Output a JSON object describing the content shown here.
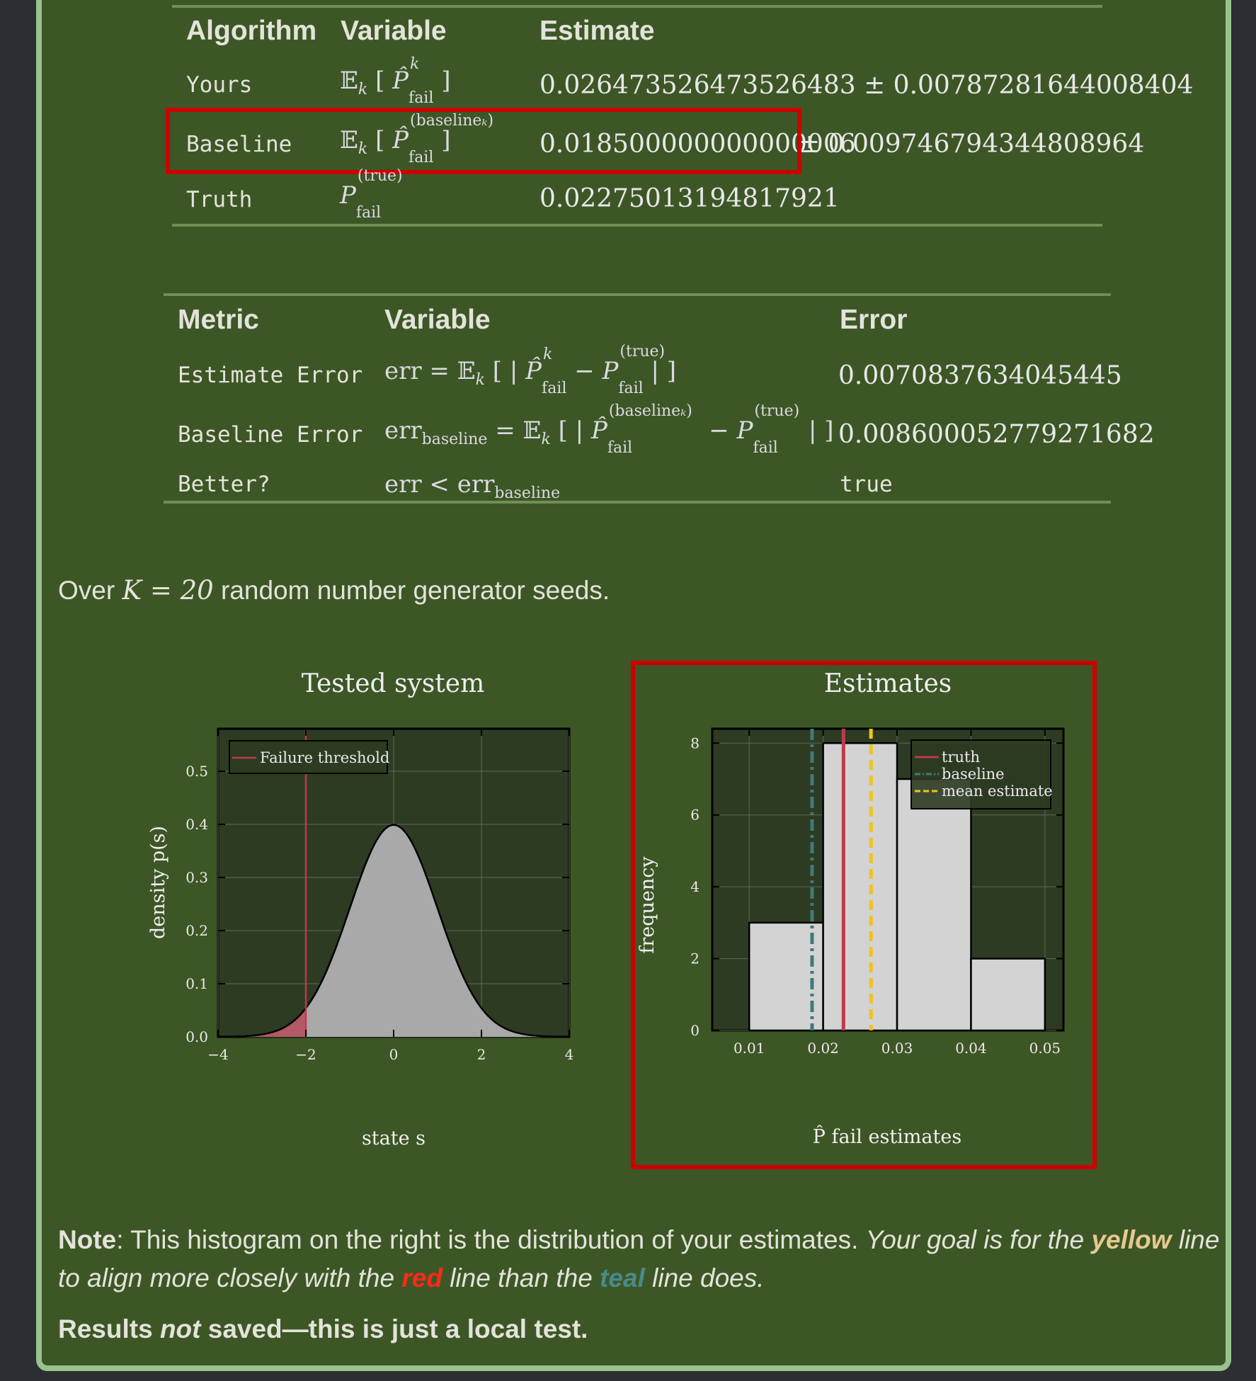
{
  "estimates_table": {
    "headers": [
      "Algorithm",
      "Variable",
      "Estimate"
    ],
    "rows": [
      {
        "algorithm": "Yours",
        "variable": "𝔼ₖ[P̂ᵏ fail]",
        "estimate": "0.026473526473526483 ± 0.00787281644008404"
      },
      {
        "algorithm": "Baseline",
        "variable": "𝔼ₖ[P̂(baselineₖ) fail]",
        "estimate_main": "0.018500000000000006",
        "estimate_pm": " ± 0.009746794344808964"
      },
      {
        "algorithm": "Truth",
        "variable": "P(true) fail",
        "estimate": "0.02275013194817921"
      }
    ]
  },
  "metrics_table": {
    "headers": [
      "Metric",
      "Variable",
      "Error"
    ],
    "rows": [
      {
        "metric": "Estimate Error",
        "error": "0.0070837634045445"
      },
      {
        "metric": "Baseline Error",
        "error": "0.008600052779271682"
      },
      {
        "metric": "Better?",
        "error": "true"
      }
    ]
  },
  "seeds_text": {
    "prefix": "Over ",
    "math": "K = 20",
    "suffix": " random number generator seeds."
  },
  "chart_data": [
    {
      "type": "area",
      "title": "Tested system",
      "xlabel": "state s",
      "ylabel": "density p(s)",
      "xlim": [
        -4,
        4
      ],
      "ylim": [
        0,
        0.58
      ],
      "xticks": [
        -4,
        -2,
        0,
        2,
        4
      ],
      "yticks": [
        0.0,
        0.1,
        0.2,
        0.3,
        0.4,
        0.5
      ],
      "grid": true,
      "legend": {
        "placement": "top-left",
        "entries": [
          "Failure threshold"
        ]
      },
      "series": [
        {
          "distribution": "standard normal",
          "mean": 0,
          "std": 1
        }
      ],
      "threshold_x": -2,
      "colors": {
        "fill": "#a9a9a9",
        "failure_fill": "#b25a66",
        "threshold_line": "#c0394b"
      }
    },
    {
      "type": "bar",
      "title": "Estimates",
      "xlabel": "P̂ fail estimates",
      "ylabel": "frequency",
      "xlim": [
        0.005,
        0.0525
      ],
      "ylim": [
        0,
        8.4
      ],
      "xticks": [
        0.01,
        0.02,
        0.03,
        0.04,
        0.05
      ],
      "yticks": [
        0,
        2,
        4,
        6,
        8
      ],
      "grid": true,
      "bins": [
        {
          "start": 0.01,
          "end": 0.02,
          "count": 3
        },
        {
          "start": 0.02,
          "end": 0.03,
          "count": 8
        },
        {
          "start": 0.03,
          "end": 0.04,
          "count": 7
        },
        {
          "start": 0.04,
          "end": 0.05,
          "count": 2
        }
      ],
      "lines": {
        "truth": 0.02275,
        "baseline": 0.0185,
        "mean_estimate": 0.02647
      },
      "legend": {
        "placement": "top-right",
        "entries": [
          "truth",
          "baseline",
          "mean estimate"
        ]
      },
      "colors": {
        "truth": "#c0394b",
        "baseline": "#3f7a7a",
        "mean": "#f0c419",
        "bar": "#d3d3d3"
      }
    }
  ],
  "note": {
    "label": "Note",
    "text1": ": This histogram on the right is the distribution of your estimates. ",
    "italic1": "Your goal is for the ",
    "yellow": "yellow",
    "italic2": " line",
    "italic3": "to align more closely with the ",
    "red": "red",
    "italic4": " line than the ",
    "teal": "teal",
    "italic5": " line does."
  },
  "results": {
    "prefix": "Results ",
    "not": "not",
    "suffix": " saved—this is just a local test."
  },
  "colors": {
    "panel": "#3d5626",
    "border": "#98c28e",
    "highlight": "#cc0000",
    "plot_bg": "#2d3b22"
  }
}
